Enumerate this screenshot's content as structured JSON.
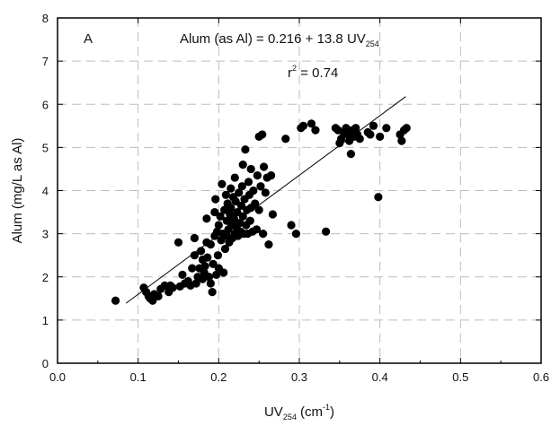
{
  "chart_data": {
    "type": "scatter",
    "panel_label": "A",
    "xlabel": {
      "base": "UV",
      "sub": "254",
      "unit_open": " (cm",
      "unit_sup": "-1",
      "unit_close": ")"
    },
    "ylabel": "Alum (mg/L as Al)",
    "xlim": [
      0.0,
      0.6
    ],
    "ylim": [
      0,
      8
    ],
    "x_ticks": [
      "0.0",
      "0.1",
      "0.2",
      "0.3",
      "0.4",
      "0.5",
      "0.6"
    ],
    "x_tick_values": [
      0.0,
      0.1,
      0.2,
      0.3,
      0.4,
      0.5,
      0.6
    ],
    "y_ticks": [
      "0",
      "1",
      "2",
      "3",
      "4",
      "5",
      "6",
      "7",
      "8"
    ],
    "y_tick_values": [
      0,
      1,
      2,
      3,
      4,
      5,
      6,
      7,
      8
    ],
    "grid": true,
    "equation": {
      "main": "Alum (as Al) = 0.216 + 13.8 UV",
      "sub": "254"
    },
    "r2": {
      "base": "r",
      "sup": "2",
      "rest": " = 0.74"
    },
    "fit_line": {
      "intercept": 0.216,
      "slope": 13.8,
      "x_range": [
        0.085,
        0.432
      ]
    },
    "points": [
      [
        0.072,
        1.45
      ],
      [
        0.107,
        1.75
      ],
      [
        0.11,
        1.65
      ],
      [
        0.113,
        1.55
      ],
      [
        0.115,
        1.5
      ],
      [
        0.118,
        1.45
      ],
      [
        0.12,
        1.6
      ],
      [
        0.125,
        1.55
      ],
      [
        0.128,
        1.72
      ],
      [
        0.133,
        1.8
      ],
      [
        0.138,
        1.65
      ],
      [
        0.14,
        1.8
      ],
      [
        0.143,
        1.75
      ],
      [
        0.15,
        2.8
      ],
      [
        0.152,
        1.78
      ],
      [
        0.155,
        2.05
      ],
      [
        0.158,
        1.85
      ],
      [
        0.162,
        1.9
      ],
      [
        0.165,
        1.8
      ],
      [
        0.167,
        2.2
      ],
      [
        0.17,
        2.5
      ],
      [
        0.17,
        2.9
      ],
      [
        0.172,
        1.85
      ],
      [
        0.174,
        2.0
      ],
      [
        0.176,
        2.2
      ],
      [
        0.178,
        2.6
      ],
      [
        0.18,
        1.95
      ],
      [
        0.18,
        2.4
      ],
      [
        0.182,
        2.1
      ],
      [
        0.183,
        2.25
      ],
      [
        0.185,
        2.8
      ],
      [
        0.185,
        3.35
      ],
      [
        0.186,
        2.45
      ],
      [
        0.188,
        2.0
      ],
      [
        0.19,
        2.75
      ],
      [
        0.19,
        1.85
      ],
      [
        0.192,
        1.65
      ],
      [
        0.193,
        2.3
      ],
      [
        0.195,
        3.5
      ],
      [
        0.195,
        2.95
      ],
      [
        0.196,
        3.8
      ],
      [
        0.197,
        2.05
      ],
      [
        0.198,
        3.05
      ],
      [
        0.199,
        2.5
      ],
      [
        0.2,
        3.2
      ],
      [
        0.2,
        2.2
      ],
      [
        0.202,
        3.4
      ],
      [
        0.203,
        2.85
      ],
      [
        0.204,
        4.15
      ],
      [
        0.205,
        3.0
      ],
      [
        0.206,
        2.1
      ],
      [
        0.207,
        3.55
      ],
      [
        0.208,
        2.65
      ],
      [
        0.209,
        3.9
      ],
      [
        0.21,
        3.3
      ],
      [
        0.21,
        2.95
      ],
      [
        0.211,
        3.7
      ],
      [
        0.212,
        3.1
      ],
      [
        0.213,
        2.8
      ],
      [
        0.214,
        3.45
      ],
      [
        0.215,
        4.05
      ],
      [
        0.215,
        3.6
      ],
      [
        0.216,
        3.2
      ],
      [
        0.217,
        2.9
      ],
      [
        0.218,
        3.85
      ],
      [
        0.219,
        3.35
      ],
      [
        0.22,
        3.0
      ],
      [
        0.22,
        4.3
      ],
      [
        0.221,
        3.75
      ],
      [
        0.222,
        3.15
      ],
      [
        0.223,
        3.5
      ],
      [
        0.224,
        2.95
      ],
      [
        0.225,
        3.95
      ],
      [
        0.226,
        3.25
      ],
      [
        0.227,
        3.05
      ],
      [
        0.228,
        3.65
      ],
      [
        0.229,
        4.1
      ],
      [
        0.23,
        3.4
      ],
      [
        0.23,
        4.6
      ],
      [
        0.231,
        3.0
      ],
      [
        0.232,
        3.8
      ],
      [
        0.233,
        4.95
      ],
      [
        0.234,
        3.2
      ],
      [
        0.235,
        3.55
      ],
      [
        0.236,
        3.0
      ],
      [
        0.237,
        4.2
      ],
      [
        0.238,
        3.9
      ],
      [
        0.239,
        3.3
      ],
      [
        0.24,
        3.6
      ],
      [
        0.24,
        4.5
      ],
      [
        0.242,
        3.05
      ],
      [
        0.243,
        4.0
      ],
      [
        0.245,
        3.7
      ],
      [
        0.247,
        3.1
      ],
      [
        0.248,
        4.35
      ],
      [
        0.25,
        3.55
      ],
      [
        0.25,
        5.25
      ],
      [
        0.252,
        4.1
      ],
      [
        0.254,
        5.3
      ],
      [
        0.255,
        3.0
      ],
      [
        0.256,
        4.55
      ],
      [
        0.258,
        3.95
      ],
      [
        0.26,
        4.3
      ],
      [
        0.262,
        2.75
      ],
      [
        0.265,
        4.35
      ],
      [
        0.267,
        3.45
      ],
      [
        0.283,
        5.2
      ],
      [
        0.29,
        3.2
      ],
      [
        0.296,
        3.0
      ],
      [
        0.302,
        5.45
      ],
      [
        0.305,
        5.5
      ],
      [
        0.315,
        5.55
      ],
      [
        0.32,
        5.4
      ],
      [
        0.333,
        3.05
      ],
      [
        0.345,
        5.45
      ],
      [
        0.348,
        5.4
      ],
      [
        0.35,
        5.1
      ],
      [
        0.352,
        5.2
      ],
      [
        0.355,
        5.35
      ],
      [
        0.358,
        5.45
      ],
      [
        0.36,
        5.3
      ],
      [
        0.362,
        5.15
      ],
      [
        0.364,
        4.85
      ],
      [
        0.366,
        5.4
      ],
      [
        0.368,
        5.25
      ],
      [
        0.37,
        5.45
      ],
      [
        0.372,
        5.3
      ],
      [
        0.375,
        5.2
      ],
      [
        0.385,
        5.35
      ],
      [
        0.388,
        5.3
      ],
      [
        0.392,
        5.5
      ],
      [
        0.398,
        3.85
      ],
      [
        0.4,
        5.25
      ],
      [
        0.408,
        5.45
      ],
      [
        0.425,
        5.3
      ],
      [
        0.427,
        5.15
      ],
      [
        0.43,
        5.4
      ],
      [
        0.433,
        5.45
      ]
    ]
  }
}
